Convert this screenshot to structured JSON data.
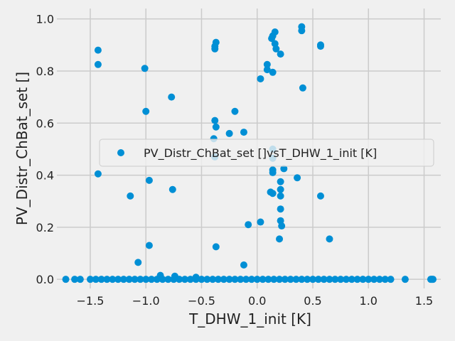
{
  "chart_data": {
    "type": "scatter",
    "title": "",
    "xlabel": "T_DHW_1_init [K]",
    "ylabel": "PV_Distr_ChBat_set []",
    "xlim": [
      -1.8,
      1.65
    ],
    "ylim": [
      -0.035,
      1.04
    ],
    "xticks": [
      -1.5,
      -1.0,
      -0.5,
      0.0,
      0.5,
      1.0,
      1.5
    ],
    "xtick_labels": [
      "−1.5",
      "−1.0",
      "−0.5",
      "0.0",
      "0.5",
      "1.0",
      "1.5"
    ],
    "yticks": [
      0.0,
      0.2,
      0.4,
      0.6,
      0.8,
      1.0
    ],
    "ytick_labels": [
      "0.0",
      "0.2",
      "0.4",
      "0.6",
      "0.8",
      "1.0"
    ],
    "grid": true,
    "legend": {
      "placement": "center-right",
      "label": "PV_Distr_ChBat_set []vsT_DHW_1_init [K]"
    },
    "series": [
      {
        "name": "PV_Distr_ChBat_set []vsT_DHW_1_init [K]",
        "color": "#008fd5",
        "points": [
          [
            -1.43,
            0.88
          ],
          [
            -1.43,
            0.825
          ],
          [
            -1.43,
            0.405
          ],
          [
            -1.01,
            0.81
          ],
          [
            -1.0,
            0.645
          ],
          [
            -0.77,
            0.7
          ],
          [
            -0.97,
            0.38
          ],
          [
            -1.14,
            0.32
          ],
          [
            -0.76,
            0.345
          ],
          [
            -0.97,
            0.13
          ],
          [
            -1.07,
            0.065
          ],
          [
            -0.37,
            0.91
          ],
          [
            -0.38,
            0.885
          ],
          [
            -0.38,
            0.895
          ],
          [
            -0.38,
            0.61
          ],
          [
            -0.37,
            0.585
          ],
          [
            -0.39,
            0.54
          ],
          [
            -0.38,
            0.47
          ],
          [
            -0.25,
            0.56
          ],
          [
            -0.2,
            0.645
          ],
          [
            -0.12,
            0.565
          ],
          [
            -0.37,
            0.125
          ],
          [
            -0.12,
            0.055
          ],
          [
            -0.08,
            0.21
          ],
          [
            0.03,
            0.22
          ],
          [
            0.03,
            0.77
          ],
          [
            0.09,
            0.825
          ],
          [
            0.09,
            0.805
          ],
          [
            0.14,
            0.795
          ],
          [
            0.13,
            0.925
          ],
          [
            0.14,
            0.935
          ],
          [
            0.16,
            0.95
          ],
          [
            0.16,
            0.905
          ],
          [
            0.17,
            0.885
          ],
          [
            0.21,
            0.865
          ],
          [
            0.4,
            0.97
          ],
          [
            0.4,
            0.955
          ],
          [
            0.41,
            0.735
          ],
          [
            0.57,
            0.9
          ],
          [
            0.57,
            0.895
          ],
          [
            0.14,
            0.5
          ],
          [
            0.14,
            0.465
          ],
          [
            0.14,
            0.41
          ],
          [
            0.14,
            0.42
          ],
          [
            0.24,
            0.425
          ],
          [
            0.36,
            0.39
          ],
          [
            0.21,
            0.375
          ],
          [
            0.21,
            0.345
          ],
          [
            0.12,
            0.335
          ],
          [
            0.14,
            0.33
          ],
          [
            0.21,
            0.32
          ],
          [
            0.21,
            0.27
          ],
          [
            0.21,
            0.225
          ],
          [
            0.22,
            0.205
          ],
          [
            0.2,
            0.155
          ],
          [
            0.57,
            0.32
          ],
          [
            0.65,
            0.155
          ],
          [
            -0.87,
            0.015
          ],
          [
            -0.74,
            0.012
          ],
          [
            -0.55,
            0.008
          ],
          [
            1.33,
            0.0
          ],
          [
            1.56,
            0.0
          ],
          [
            1.57,
            0.0
          ],
          [
            1.58,
            0.0
          ],
          [
            -1.72,
            0.0
          ],
          [
            -1.64,
            0.0
          ],
          [
            -1.59,
            0.0
          ],
          [
            -1.5,
            0.0
          ],
          [
            -1.45,
            0.0
          ],
          [
            -1.4,
            0.0
          ],
          [
            -1.35,
            0.0
          ],
          [
            -1.3,
            0.0
          ],
          [
            -1.25,
            0.0
          ],
          [
            -1.2,
            0.0
          ],
          [
            -1.15,
            0.0
          ],
          [
            -1.1,
            0.0
          ],
          [
            -1.05,
            0.0
          ],
          [
            -1.0,
            0.0
          ],
          [
            -0.95,
            0.0
          ],
          [
            -0.9,
            0.0
          ],
          [
            -0.85,
            0.0
          ],
          [
            -0.8,
            0.0
          ],
          [
            -0.75,
            0.0
          ],
          [
            -0.7,
            0.0
          ],
          [
            -0.65,
            0.0
          ],
          [
            -0.6,
            0.0
          ],
          [
            -0.55,
            0.0
          ],
          [
            -0.5,
            0.0
          ],
          [
            -0.45,
            0.0
          ],
          [
            -0.4,
            0.0
          ],
          [
            -0.35,
            0.0
          ],
          [
            -0.3,
            0.0
          ],
          [
            -0.25,
            0.0
          ],
          [
            -0.2,
            0.0
          ],
          [
            -0.15,
            0.0
          ],
          [
            -0.1,
            0.0
          ],
          [
            -0.05,
            0.0
          ],
          [
            0.0,
            0.0
          ],
          [
            0.05,
            0.0
          ],
          [
            0.1,
            0.0
          ],
          [
            0.15,
            0.0
          ],
          [
            0.2,
            0.0
          ],
          [
            0.25,
            0.0
          ],
          [
            0.3,
            0.0
          ],
          [
            0.35,
            0.0
          ],
          [
            0.4,
            0.0
          ],
          [
            0.45,
            0.0
          ],
          [
            0.5,
            0.0
          ],
          [
            0.55,
            0.0
          ],
          [
            0.6,
            0.0
          ],
          [
            0.65,
            0.0
          ],
          [
            0.7,
            0.0
          ],
          [
            0.75,
            0.0
          ],
          [
            0.8,
            0.0
          ],
          [
            0.85,
            0.0
          ],
          [
            0.9,
            0.0
          ],
          [
            0.95,
            0.0
          ],
          [
            1.0,
            0.0
          ],
          [
            1.05,
            0.0
          ],
          [
            1.1,
            0.0
          ],
          [
            1.15,
            0.0
          ],
          [
            1.2,
            0.0
          ]
        ]
      }
    ]
  }
}
